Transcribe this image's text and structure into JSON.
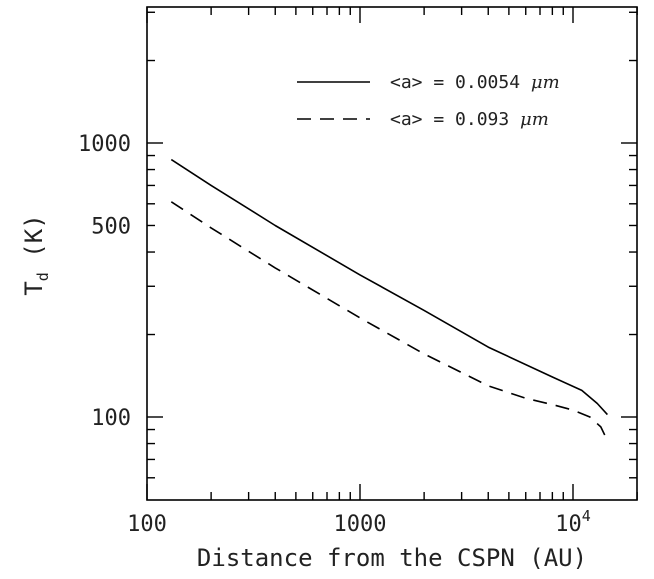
{
  "chart_data": {
    "type": "line",
    "xlabel": "Distance from the CSPN (AU)",
    "ylabel_main": "T",
    "ylabel_sub": "d",
    "ylabel_unit": "(K)",
    "xscale": "log",
    "yscale": "log",
    "xlim": [
      100,
      20000
    ],
    "ylim": [
      50,
      3000
    ],
    "x_ticklabels": [
      {
        "value": 100,
        "text": "100"
      },
      {
        "value": 1000,
        "text": "1000"
      },
      {
        "value": 10000,
        "base": "10",
        "exp": "4"
      }
    ],
    "y_ticklabels": [
      {
        "value": 100,
        "text": "100"
      },
      {
        "value": 500,
        "text": "500"
      },
      {
        "value": 1000,
        "text": "1000"
      }
    ],
    "legend_position": "top-right",
    "series": [
      {
        "name": "<a> = 0.0054 μm",
        "name_prefix": "<a> = 0.0054 ",
        "name_unit": "μm",
        "style": "solid",
        "color": "#000000",
        "x": [
          130,
          200,
          400,
          1000,
          2000,
          4000,
          8000,
          11000,
          13000,
          14500
        ],
        "y": [
          870,
          700,
          500,
          330,
          245,
          180,
          140,
          125,
          112,
          102
        ]
      },
      {
        "name": "<a> = 0.093 μm",
        "name_prefix": "<a> = 0.093 ",
        "name_unit": "μm",
        "style": "dashed",
        "color": "#000000",
        "x": [
          130,
          200,
          400,
          1000,
          2000,
          4000,
          6000,
          8000,
          10000,
          12000,
          13500,
          14500
        ],
        "y": [
          610,
          490,
          350,
          230,
          170,
          130,
          117,
          111,
          106,
          100,
          92,
          82
        ]
      }
    ]
  }
}
